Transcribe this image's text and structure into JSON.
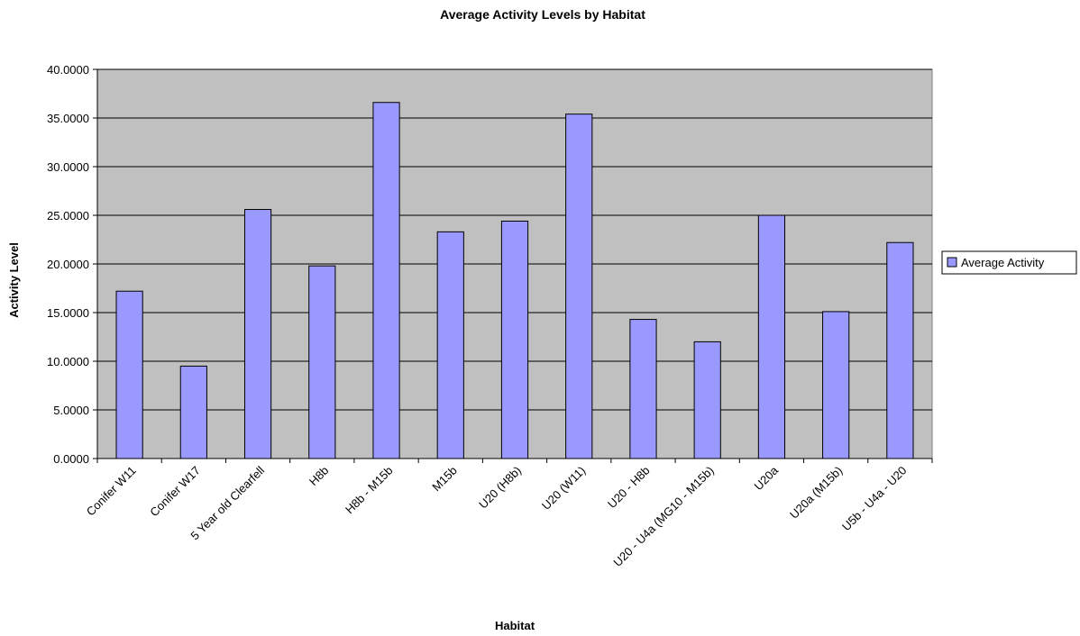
{
  "chart_data": {
    "type": "bar",
    "title": "Average Activity Levels by Habitat",
    "xlabel": "Habitat",
    "ylabel": "Activity Level",
    "ylim": [
      0,
      40
    ],
    "ytick_step": 5,
    "ytick_labels": [
      "0.0000",
      "5.0000",
      "10.0000",
      "15.0000",
      "20.0000",
      "25.0000",
      "30.0000",
      "35.0000",
      "40.0000"
    ],
    "grid": true,
    "legend_position": "right",
    "categories": [
      "Conifer W11",
      "Conifer W17",
      "5 Year old Clearfell",
      "H8b",
      "H8b - M15b",
      "M15b",
      "U20 (H8b)",
      "U20 (W11)",
      "U20 - H8b",
      "U20 - U4a (MG10 - M15b)",
      "U20a",
      "U20a (M15b)",
      "U5b - U4a - U20"
    ],
    "series": [
      {
        "name": "Average Activity",
        "values": [
          17.2,
          9.5,
          25.6,
          19.8,
          36.6,
          23.3,
          24.4,
          35.4,
          14.3,
          12.0,
          25.0,
          15.1,
          22.2
        ]
      }
    ],
    "colors": {
      "plot_background": "#c0c0c0",
      "bar_fill": "#9999ff",
      "bar_stroke": "#000000",
      "gridline": "#000000"
    }
  }
}
